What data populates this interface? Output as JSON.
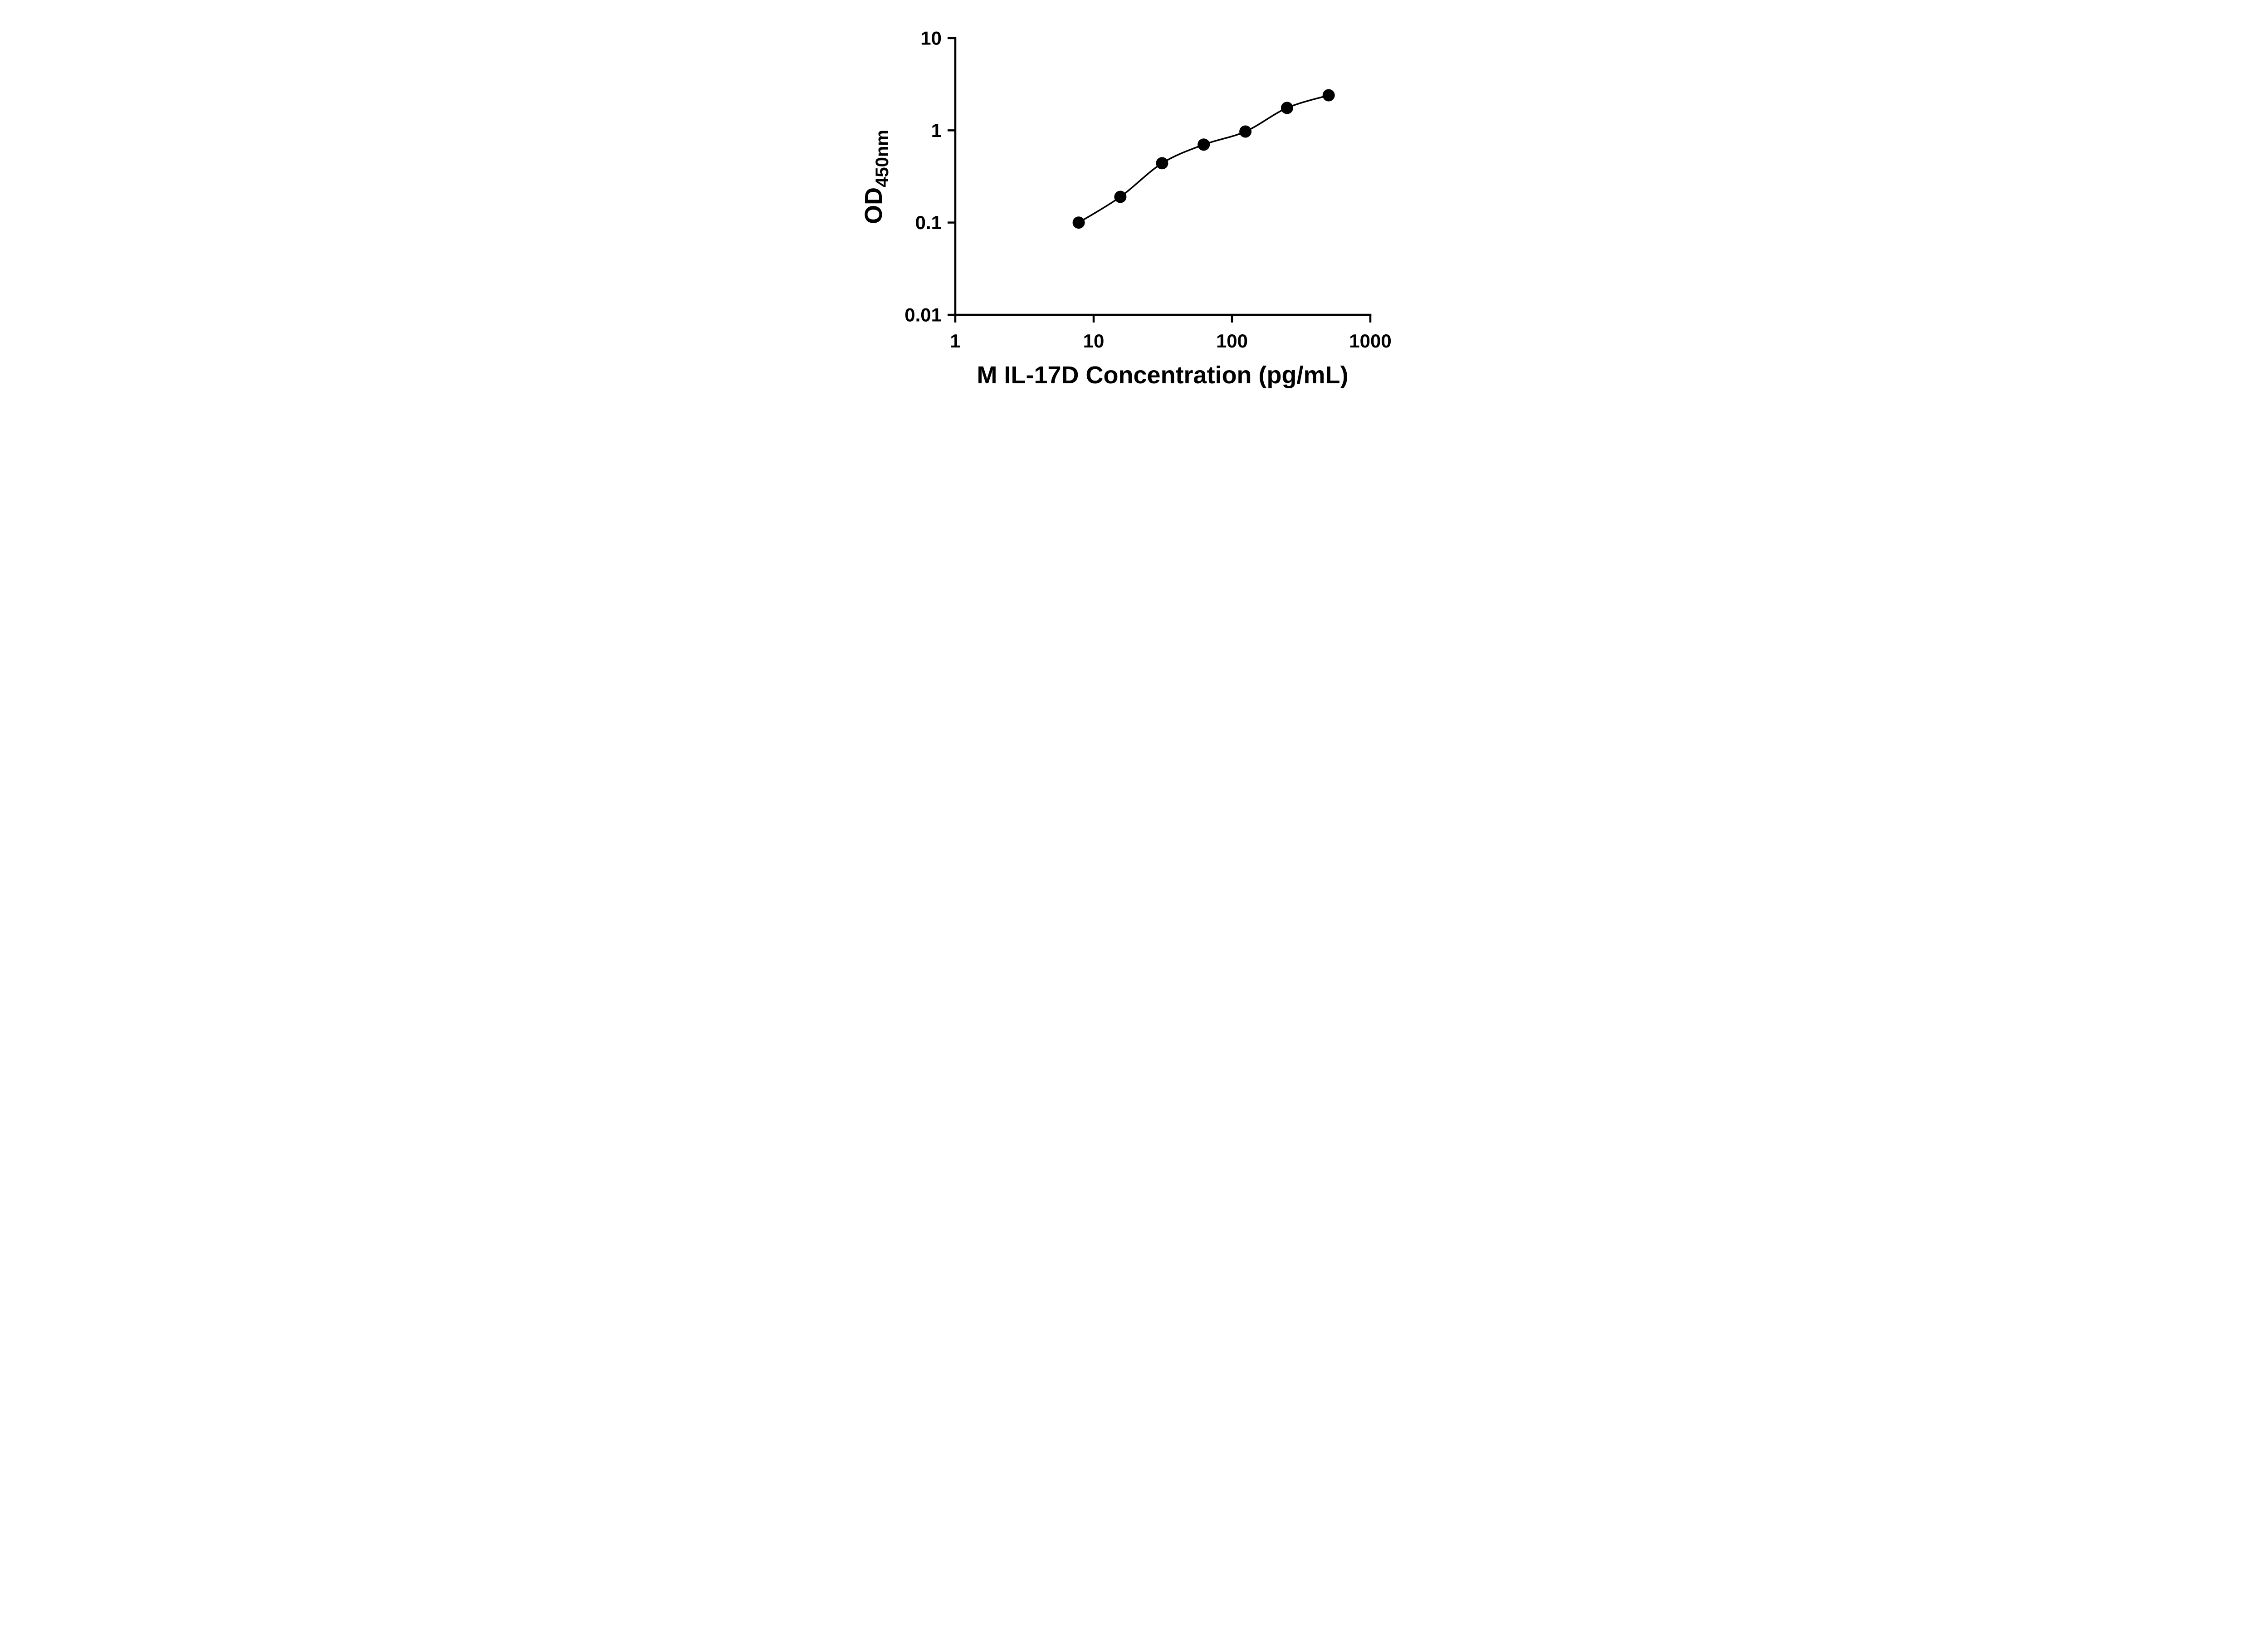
{
  "figure": {
    "background": "#ffffff"
  },
  "chart_data": {
    "type": "scatter",
    "title": "",
    "xlabel": "M IL-17D Concentration (pg/mL)",
    "ylabel": "OD",
    "ylabel_subscript": "450nm",
    "x_scale": "log",
    "y_scale": "log",
    "xlim": [
      1,
      1000
    ],
    "ylim": [
      0.01,
      10
    ],
    "x_ticks": [
      1,
      10,
      100,
      1000
    ],
    "x_tick_labels": [
      "1",
      "10",
      "100",
      "1000"
    ],
    "y_ticks": [
      0.01,
      0.1,
      1,
      10
    ],
    "y_tick_labels": [
      "0.01",
      "0.1",
      "1",
      "10"
    ],
    "grid": false,
    "legend": null,
    "colors": {
      "ink": "#000000",
      "background": "#ffffff"
    },
    "series": [
      {
        "marker": "circle",
        "trendline": true,
        "points": [
          {
            "x": 7.8,
            "y": 0.1
          },
          {
            "x": 15.6,
            "y": 0.19
          },
          {
            "x": 31.25,
            "y": 0.44
          },
          {
            "x": 62.5,
            "y": 0.7
          },
          {
            "x": 125,
            "y": 0.97
          },
          {
            "x": 250,
            "y": 1.75
          },
          {
            "x": 500,
            "y": 2.4
          }
        ]
      }
    ]
  }
}
